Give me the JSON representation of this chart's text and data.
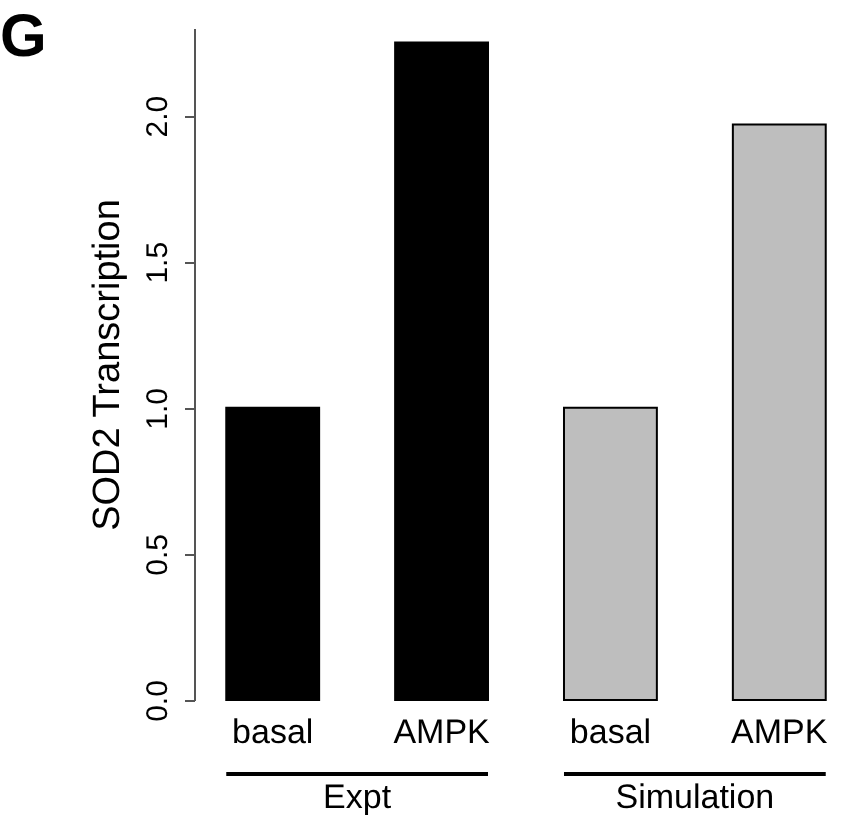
{
  "chart_data": {
    "type": "bar",
    "title": "G",
    "ylabel": "SOD2 Transcription",
    "categories": [
      "basal",
      "AMPK",
      "basal",
      "AMPK"
    ],
    "values": [
      1.0,
      2.25,
      1.0,
      1.97
    ],
    "colors": [
      "#000000",
      "#000000",
      "#bebebe",
      "#bebebe"
    ],
    "ylim": [
      0,
      2.3
    ],
    "yticks": [
      {
        "value": 0,
        "label": "0.0"
      },
      {
        "value": 0.5,
        "label": "0.5"
      },
      {
        "value": 1,
        "label": "1.0"
      },
      {
        "value": 1.5,
        "label": "1.5"
      },
      {
        "value": 2,
        "label": "2.0"
      }
    ],
    "grid": false,
    "annotations": [
      "Expt",
      "Simulation"
    ]
  }
}
